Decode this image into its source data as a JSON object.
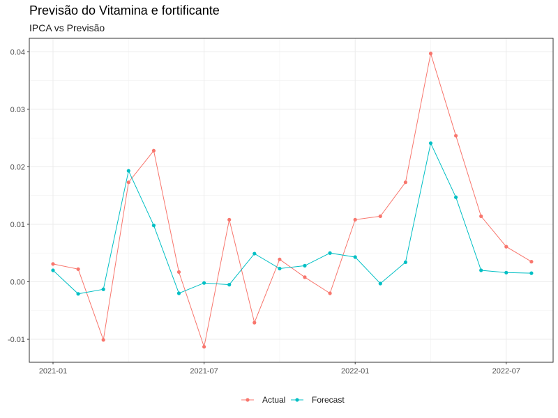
{
  "chart_data": {
    "type": "line",
    "title": "Previsão do Vitamina e fortificante",
    "subtitle": "IPCA vs Previsão",
    "xlabel": "",
    "ylabel": "",
    "x": [
      "2021-01",
      "2021-02",
      "2021-03",
      "2021-04",
      "2021-05",
      "2021-06",
      "2021-07",
      "2021-08",
      "2021-09",
      "2021-10",
      "2021-11",
      "2021-12",
      "2022-01",
      "2022-02",
      "2022-03",
      "2022-04",
      "2022-05",
      "2022-06",
      "2022-07",
      "2022-08"
    ],
    "x_ticks": [
      "2021-01",
      "2021-07",
      "2022-01",
      "2022-07"
    ],
    "y_ticks": [
      "-0.01",
      "0.00",
      "0.01",
      "0.02",
      "0.03",
      "0.04"
    ],
    "ylim": [
      -0.0138,
      0.0418
    ],
    "grid": true,
    "legend_position": "bottom",
    "series": [
      {
        "name": "Actual",
        "color": "#F8766D",
        "values": [
          0.0031,
          0.0022,
          -0.0101,
          0.0173,
          0.0228,
          0.0017,
          -0.0113,
          0.0108,
          -0.0071,
          0.0039,
          0.0008,
          -0.002,
          0.0108,
          0.0114,
          0.0173,
          0.0397,
          0.0254,
          0.0114,
          0.0061,
          0.0035
        ]
      },
      {
        "name": "Forecast",
        "color": "#00BFC4",
        "values": [
          0.002,
          -0.0021,
          -0.0013,
          0.0193,
          0.0098,
          -0.002,
          -0.0002,
          -0.0005,
          0.0049,
          0.0023,
          0.0028,
          0.005,
          0.0043,
          -0.0003,
          0.0034,
          0.0241,
          0.0147,
          0.002,
          0.0016,
          0.0015
        ]
      }
    ]
  }
}
